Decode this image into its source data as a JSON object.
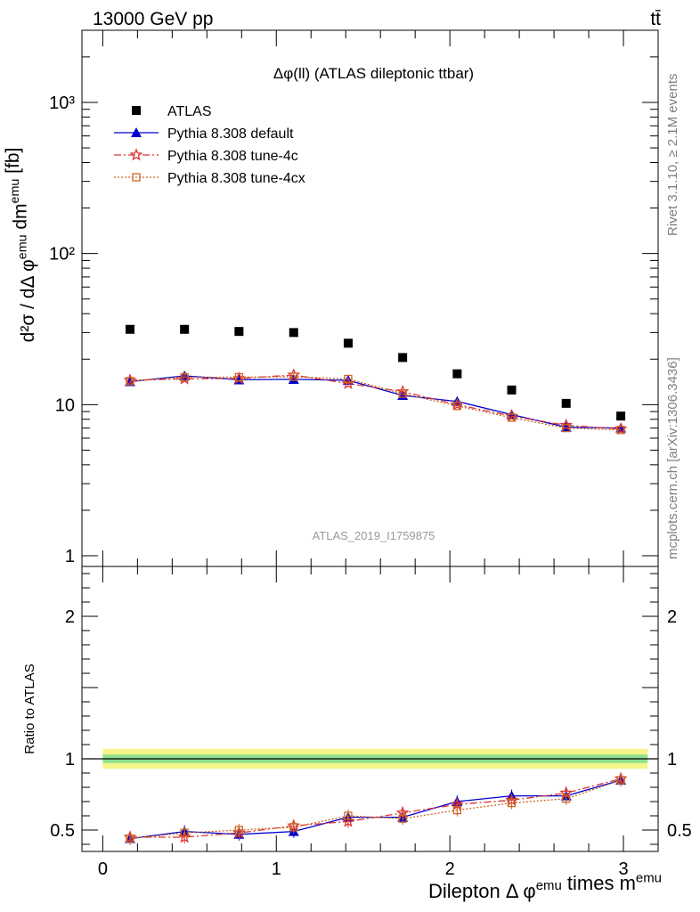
{
  "header": {
    "energy_label": "13000 GeV pp",
    "process_label": "tt̄"
  },
  "side_labels": {
    "rivet": "Rivet 3.1.10, ≥ 2.1M events",
    "mcplots": "mcplots.cern.ch [arXiv:1306.3436]"
  },
  "chart_data": [
    {
      "type": "scatter",
      "title": "Δφ(ll) (ATLAS dileptonic ttbar)",
      "ylabel": "d²σ / dΔ φ^emu dm^emu [fb]",
      "yscale": "log",
      "ylim": [
        0.85,
        3000
      ],
      "yticks": [
        1,
        10,
        100,
        1000
      ],
      "ytick_labels": [
        "1",
        "10",
        "10²",
        "10³"
      ],
      "xlim": [
        -0.12,
        3.2
      ],
      "watermark": "ATLAS_2019_I1759875",
      "legend_position": "top-left",
      "x": [
        0.157,
        0.471,
        0.785,
        1.1,
        1.414,
        1.728,
        2.042,
        2.356,
        2.67,
        2.985
      ],
      "series": [
        {
          "name": "ATLAS",
          "color": "#000000",
          "marker": "square",
          "line": "none",
          "values": [
            31.5,
            31.5,
            30.5,
            30.0,
            25.5,
            20.5,
            16.0,
            12.5,
            10.2,
            8.4
          ]
        },
        {
          "name": "Pythia 8.308 default",
          "color": "#0000cc",
          "marker": "triangle",
          "line": "solid",
          "values": [
            14.2,
            15.5,
            14.6,
            14.7,
            14.5,
            11.5,
            10.5,
            8.6,
            7.1,
            7.0
          ]
        },
        {
          "name": "Pythia 8.308 tune-4c",
          "color": "#dd3333",
          "marker": "star",
          "line": "dashdot",
          "values": [
            14.5,
            14.8,
            14.9,
            15.7,
            13.8,
            12.2,
            10.0,
            8.4,
            7.3,
            6.9
          ]
        },
        {
          "name": "Pythia 8.308 tune-4cx",
          "color": "#cc6622",
          "marker": "open-square",
          "line": "dotted",
          "values": [
            14.3,
            15.2,
            15.2,
            15.3,
            14.8,
            11.8,
            9.8,
            8.2,
            7.0,
            6.8
          ]
        }
      ]
    },
    {
      "type": "scatter",
      "ylabel": "Ratio to ATLAS",
      "xlabel": "Dilepton Δ φ^emu times m^emu",
      "ylim": [
        0.35,
        2.35
      ],
      "yticks": [
        0.5,
        1,
        2
      ],
      "ytick_labels": [
        "0.5",
        "1",
        "2"
      ],
      "xlim": [
        -0.12,
        3.2
      ],
      "xticks": [
        0,
        1,
        2,
        3
      ],
      "xtick_labels": [
        "0",
        "1",
        "2",
        "3"
      ],
      "x": [
        0.157,
        0.471,
        0.785,
        1.1,
        1.414,
        1.728,
        2.042,
        2.356,
        2.67,
        2.985
      ],
      "band": {
        "x_range": [
          0,
          3.14
        ],
        "yellow": [
          0.93,
          1.07
        ],
        "green": [
          0.97,
          1.03
        ]
      },
      "series": [
        {
          "name": "Pythia 8.308 default",
          "values": [
            0.44,
            0.49,
            0.47,
            0.49,
            0.59,
            0.59,
            0.7,
            0.74,
            0.74,
            0.85
          ]
        },
        {
          "name": "Pythia 8.308 tune-4c",
          "values": [
            0.45,
            0.45,
            0.48,
            0.53,
            0.56,
            0.62,
            0.68,
            0.71,
            0.76,
            0.86
          ]
        },
        {
          "name": "Pythia 8.308 tune-4cx",
          "values": [
            0.44,
            0.48,
            0.5,
            0.52,
            0.6,
            0.58,
            0.64,
            0.69,
            0.72,
            0.85
          ]
        }
      ]
    }
  ]
}
